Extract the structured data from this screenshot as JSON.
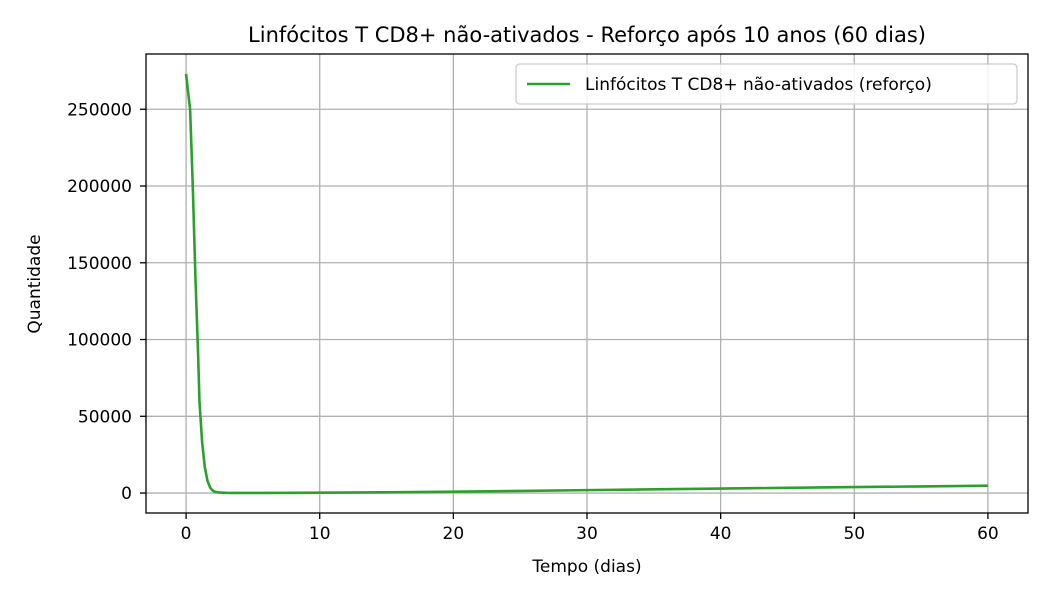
{
  "chart_data": {
    "type": "line",
    "title": "Linfócitos T CD8+ não-ativados - Reforço após 10 anos (60 dias)",
    "xlabel": "Tempo (dias)",
    "ylabel": "Quantidade",
    "xlim": [
      -3,
      63
    ],
    "ylim": [
      -13000,
      286000
    ],
    "xticks": [
      0,
      10,
      20,
      30,
      40,
      50,
      60
    ],
    "xtick_labels": [
      "0",
      "10",
      "20",
      "30",
      "40",
      "50",
      "60"
    ],
    "yticks": [
      0,
      50000,
      100000,
      150000,
      200000,
      250000
    ],
    "ytick_labels": [
      "0",
      "50000",
      "100000",
      "150000",
      "200000",
      "250000"
    ],
    "grid": true,
    "legend_position": "top-right",
    "series": [
      {
        "name": "Linfócitos T CD8+ não-ativados (reforço)",
        "color": "#2ca02c",
        "x": [
          0,
          0.1,
          0.3,
          0.5,
          0.7,
          0.9,
          1.0,
          1.2,
          1.4,
          1.6,
          1.8,
          2.0,
          2.2,
          2.5,
          3.0,
          3.5,
          4,
          5,
          6,
          8,
          10,
          15,
          20,
          25,
          30,
          35,
          40,
          45,
          50,
          55,
          60
        ],
        "y": [
          273000,
          265000,
          250000,
          200000,
          140000,
          90000,
          60000,
          33000,
          17000,
          8000,
          3500,
          1500,
          700,
          300,
          150,
          100,
          90,
          90,
          100,
          150,
          250,
          500,
          900,
          1400,
          1900,
          2400,
          2900,
          3400,
          3900,
          4300,
          4800
        ]
      }
    ]
  }
}
